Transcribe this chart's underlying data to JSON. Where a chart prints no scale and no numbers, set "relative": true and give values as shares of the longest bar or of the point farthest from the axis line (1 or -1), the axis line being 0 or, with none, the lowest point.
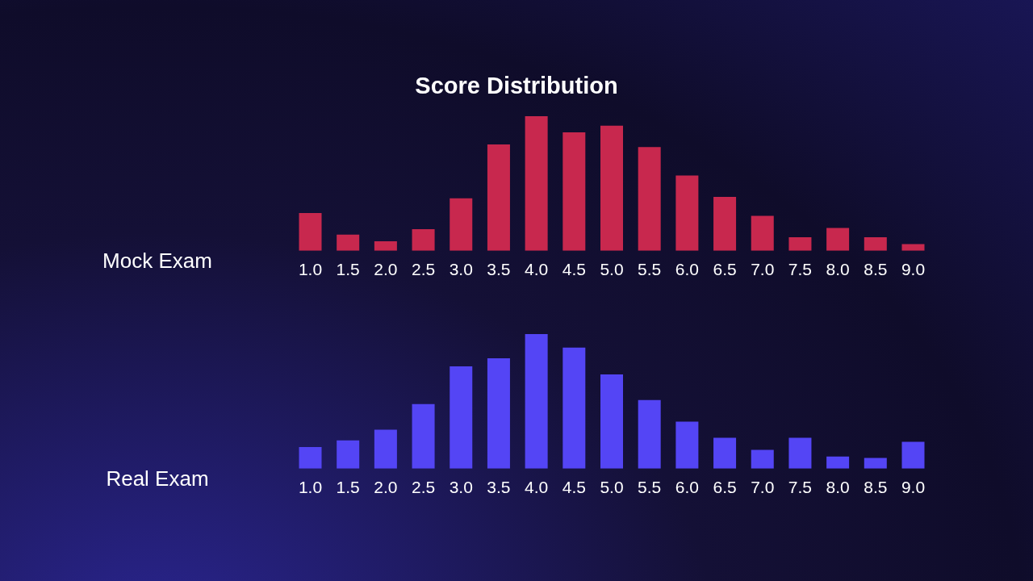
{
  "chart_data": [
    {
      "type": "bar",
      "title": "Score Distribution",
      "ylabel": "Mock Exam",
      "relative": true,
      "categories": [
        "1.0",
        "1.5",
        "2.0",
        "2.5",
        "3.0",
        "3.5",
        "4.0",
        "4.5",
        "5.0",
        "5.5",
        "6.0",
        "6.5",
        "7.0",
        "7.5",
        "8.0",
        "8.5",
        "9.0"
      ],
      "color": "#c8284e",
      "values": [
        0.28,
        0.12,
        0.07,
        0.16,
        0.39,
        0.79,
        1,
        0.88,
        0.93,
        0.77,
        0.56,
        0.4,
        0.26,
        0.1,
        0.17,
        0.1,
        0.05
      ],
      "grid": false,
      "legend": false
    },
    {
      "type": "bar",
      "ylabel": "Real Exam",
      "relative": true,
      "categories": [
        "1.0",
        "1.5",
        "2.0",
        "2.5",
        "3.0",
        "3.5",
        "4.0",
        "4.5",
        "5.0",
        "5.5",
        "6.0",
        "6.5",
        "7.0",
        "7.5",
        "8.0",
        "8.5",
        "9.0"
      ],
      "color": "#5445f5",
      "values": [
        0.16,
        0.21,
        0.29,
        0.48,
        0.76,
        0.82,
        1,
        0.9,
        0.7,
        0.51,
        0.35,
        0.23,
        0.14,
        0.23,
        0.09,
        0.08,
        0.2
      ],
      "grid": false,
      "legend": false
    }
  ]
}
